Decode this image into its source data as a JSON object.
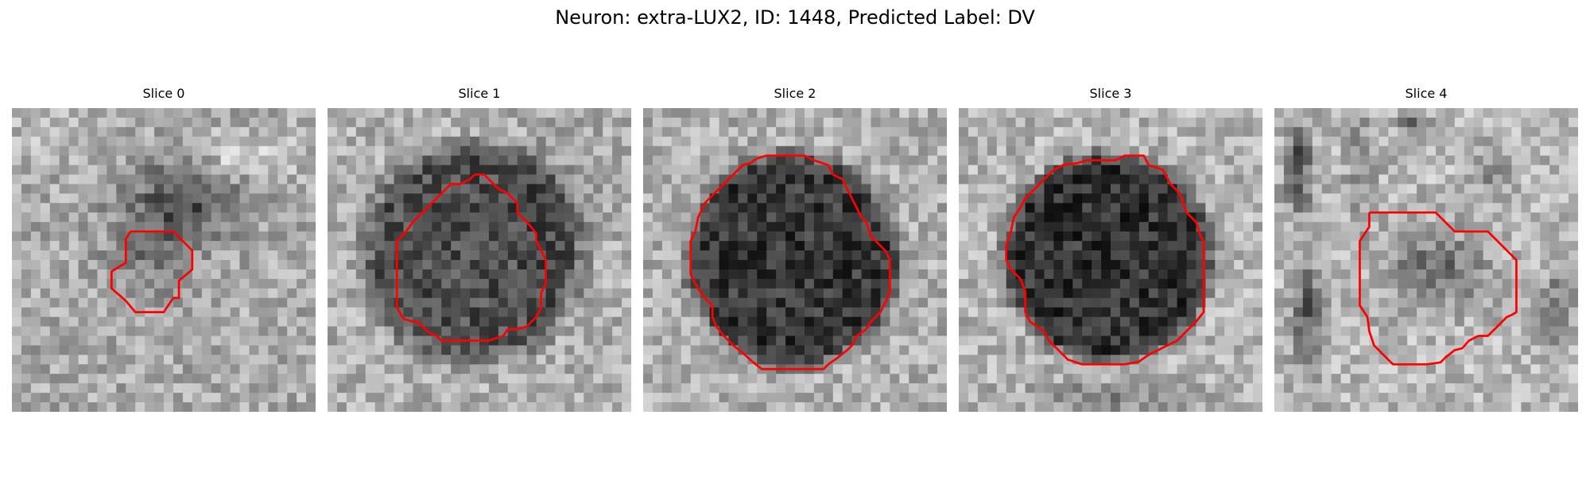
{
  "figure": {
    "title": "Neuron: extra-LUX2, ID: 1448, Predicted Label: DV"
  },
  "contour_color": "#ff0000",
  "colormap": "grayscale",
  "slices": [
    {
      "title": "Slice 0"
    },
    {
      "title": "Slice 1"
    },
    {
      "title": "Slice 2"
    },
    {
      "title": "Slice 3"
    },
    {
      "title": "Slice 4"
    }
  ]
}
